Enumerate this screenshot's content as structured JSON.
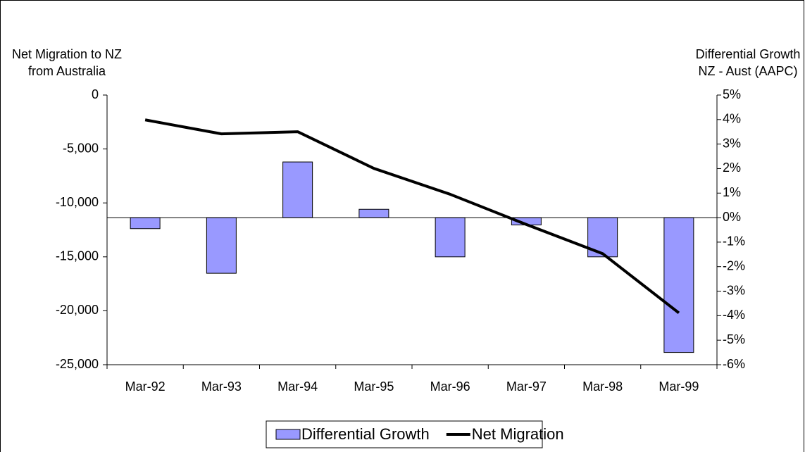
{
  "chart_data": {
    "type": "combo",
    "y_label": [
      "Net Migration to NZ",
      "from Australia"
    ],
    "y2_label": [
      "Differential Growth",
      "NZ - Aust (AAPC)"
    ],
    "categories": [
      "Mar-92",
      "Mar-93",
      "Mar-94",
      "Mar-95",
      "Mar-96",
      "Mar-97",
      "Mar-98",
      "Mar-99"
    ],
    "series": [
      {
        "name": "Differential Growth",
        "type": "bar",
        "axis": "y2",
        "color": "#9999ff",
        "values": [
          -0.45,
          -2.27,
          2.27,
          0.34,
          -1.6,
          -0.3,
          -1.6,
          -5.5
        ]
      },
      {
        "name": "Net Migration",
        "type": "line",
        "axis": "y",
        "color": "#000000",
        "values": [
          -2300,
          -3600,
          -3400,
          -6800,
          -9200,
          -12000,
          -14700,
          -20200
        ]
      }
    ],
    "ylim": [
      -25000,
      0
    ],
    "yticks": [
      {
        "value": -25000,
        "label": "-25,000"
      },
      {
        "value": -20000,
        "label": "-20,000"
      },
      {
        "value": -15000,
        "label": "-15,000"
      },
      {
        "value": -10000,
        "label": "-10,000"
      },
      {
        "value": -5000,
        "label": "-5,000"
      },
      0
    ],
    "y2lim": [
      -6,
      5
    ],
    "y2ticks": [
      {
        "value": -6,
        "label": "-6%"
      },
      {
        "value": -5,
        "label": "-5%"
      },
      {
        "value": -4,
        "label": "-4%"
      },
      {
        "value": -3,
        "label": "-3%"
      },
      {
        "value": -2,
        "label": "-2%"
      },
      {
        "value": -1,
        "label": "-1%"
      },
      {
        "value": 0,
        "label": "0%"
      },
      {
        "value": 1,
        "label": "1%"
      },
      {
        "value": 2,
        "label": "2%"
      },
      {
        "value": 3,
        "label": "3%"
      },
      {
        "value": 4,
        "label": "4%"
      },
      {
        "value": 5,
        "label": "5%"
      }
    ],
    "legend": "bottom"
  }
}
